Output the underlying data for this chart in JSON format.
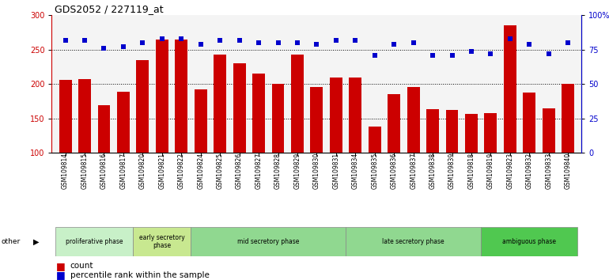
{
  "title": "GDS2052 / 227119_at",
  "samples": [
    "GSM109814",
    "GSM109815",
    "GSM109816",
    "GSM109817",
    "GSM109820",
    "GSM109821",
    "GSM109822",
    "GSM109824",
    "GSM109825",
    "GSM109826",
    "GSM109827",
    "GSM109828",
    "GSM109829",
    "GSM109830",
    "GSM109831",
    "GSM109834",
    "GSM109835",
    "GSM109836",
    "GSM109837",
    "GSM109838",
    "GSM109839",
    "GSM109818",
    "GSM109819",
    "GSM109823",
    "GSM109832",
    "GSM109833",
    "GSM109840"
  ],
  "bar_values": [
    206,
    207,
    169,
    189,
    235,
    265,
    265,
    192,
    243,
    230,
    215,
    200,
    243,
    196,
    210,
    210,
    138,
    185,
    196,
    163,
    162,
    156,
    157,
    285,
    188,
    164,
    200
  ],
  "percentile_values": [
    82,
    82,
    76,
    77,
    80,
    83,
    83,
    79,
    82,
    82,
    80,
    80,
    80,
    79,
    82,
    82,
    71,
    79,
    80,
    71,
    71,
    74,
    72,
    83,
    79,
    72,
    80
  ],
  "ylim_left": [
    100,
    300
  ],
  "ylim_right": [
    0,
    100
  ],
  "yticks_left": [
    100,
    150,
    200,
    250,
    300
  ],
  "yticks_right": [
    0,
    25,
    50,
    75,
    100
  ],
  "ytick_right_labels": [
    "0",
    "25",
    "50",
    "75",
    "100%"
  ],
  "bar_color": "#cc0000",
  "dot_color": "#0000cc",
  "grid_lines": [
    150,
    200,
    250
  ],
  "phase_labels": [
    "proliferative phase",
    "early secretory\nphase",
    "mid secretory phase",
    "late secretory phase",
    "ambiguous phase"
  ],
  "phase_starts": [
    0,
    4,
    7,
    15,
    22
  ],
  "phase_ends": [
    3,
    6,
    14,
    21,
    26
  ],
  "phase_colors": [
    "#c8f0c8",
    "#c8e890",
    "#90d890",
    "#90d890",
    "#50c850"
  ]
}
